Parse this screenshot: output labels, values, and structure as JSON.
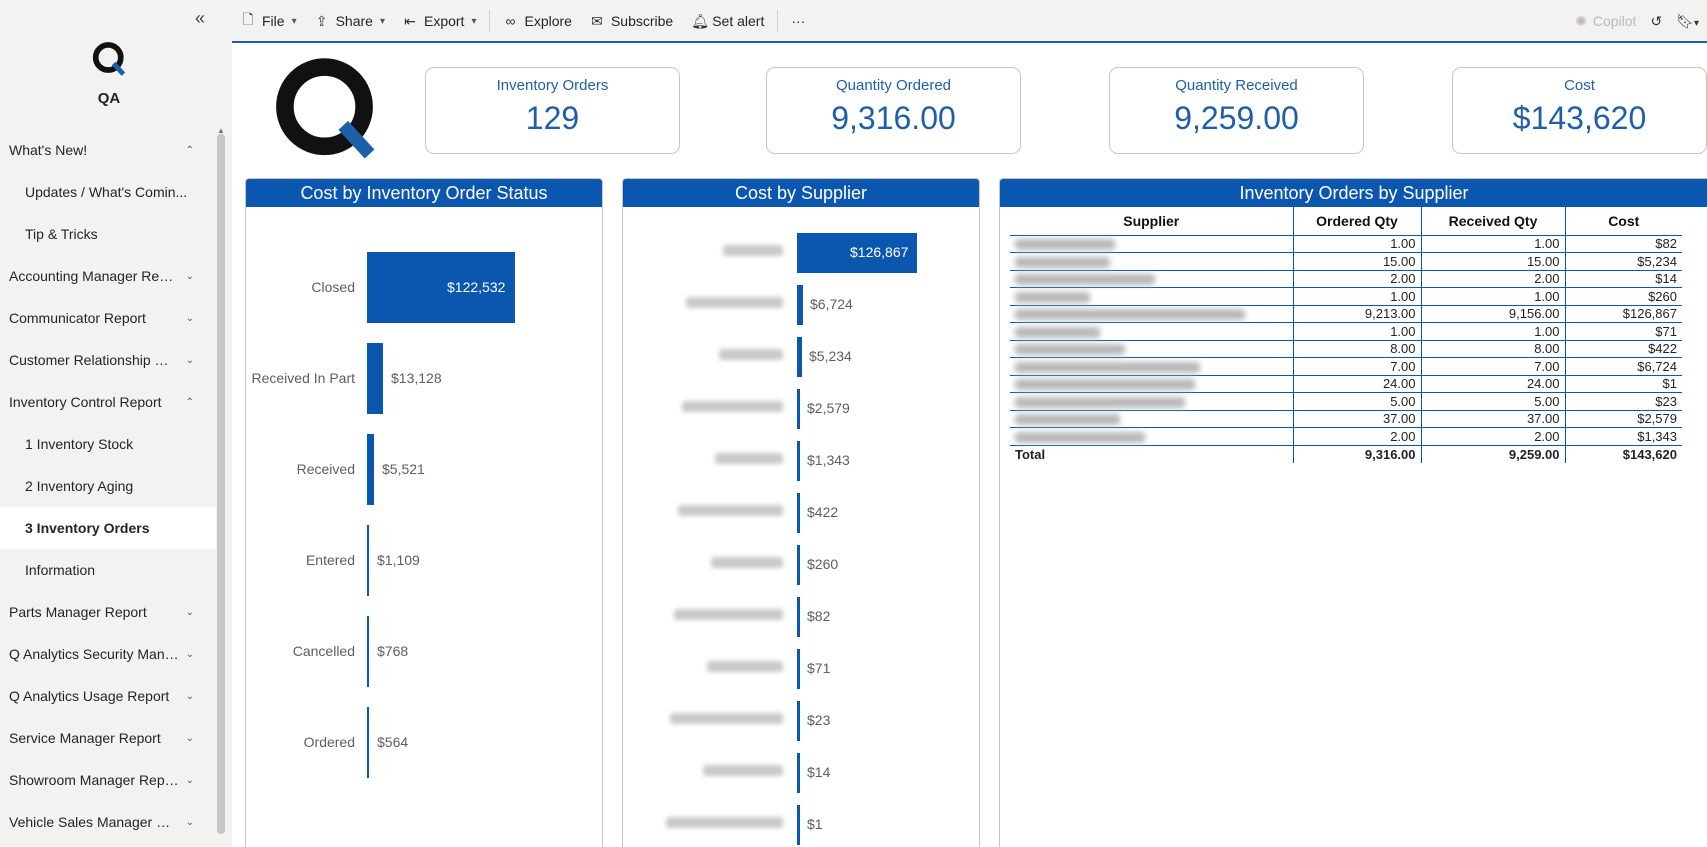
{
  "app": {
    "name": "QA"
  },
  "nav": [
    {
      "label": "What's New!",
      "type": "section",
      "chevron": "up",
      "active": false
    },
    {
      "label": "Updates / What's Comin...",
      "type": "child",
      "active": false
    },
    {
      "label": "Tip & Tricks",
      "type": "child",
      "active": false
    },
    {
      "label": "Accounting Manager Report",
      "type": "section",
      "chevron": "down",
      "active": false
    },
    {
      "label": "Communicator Report",
      "type": "section",
      "chevron": "down",
      "active": false
    },
    {
      "label": "Customer Relationship Ma...",
      "type": "section",
      "chevron": "down",
      "active": false
    },
    {
      "label": "Inventory Control Report",
      "type": "section",
      "chevron": "up",
      "active": false
    },
    {
      "label": "1 Inventory Stock",
      "type": "child",
      "active": false
    },
    {
      "label": "2 Inventory Aging",
      "type": "child",
      "active": false
    },
    {
      "label": "3 Inventory Orders",
      "type": "child",
      "active": true
    },
    {
      "label": "Information",
      "type": "child",
      "active": false
    },
    {
      "label": "Parts Manager Report",
      "type": "section",
      "chevron": "down",
      "active": false
    },
    {
      "label": "Q Analytics Security Mana...",
      "type": "section",
      "chevron": "down",
      "active": false
    },
    {
      "label": "Q Analytics Usage Report",
      "type": "section",
      "chevron": "down",
      "active": false
    },
    {
      "label": "Service Manager Report",
      "type": "section",
      "chevron": "down",
      "active": false
    },
    {
      "label": "Showroom Manager Report",
      "type": "section",
      "chevron": "down",
      "active": false
    },
    {
      "label": "Vehicle Sales Manager Rep...",
      "type": "section",
      "chevron": "down",
      "active": false
    }
  ],
  "toolbar": {
    "file": "File",
    "share": "Share",
    "export": "Export",
    "explore": "Explore",
    "subscribe": "Subscribe",
    "set_alert": "Set alert",
    "more": "···",
    "copilot": "Copilot"
  },
  "kpis": [
    {
      "title": "Inventory Orders",
      "value": "129"
    },
    {
      "title": "Quantity Ordered",
      "value": "9,316.00"
    },
    {
      "title": "Quantity Received",
      "value": "9,259.00"
    },
    {
      "title": "Cost",
      "value": "$143,620"
    }
  ],
  "status_chart": {
    "title": "Cost by Inventory Order Status",
    "chart_data": {
      "type": "bar",
      "orientation": "horizontal",
      "title": "Cost by Inventory Order Status",
      "categories": [
        "Closed",
        "Received In Part",
        "Received",
        "Entered",
        "Cancelled",
        "Ordered"
      ],
      "values": [
        122532,
        13128,
        5521,
        1109,
        768,
        564
      ],
      "labels": [
        "$122,532",
        "$13,128",
        "$5,521",
        "$1,109",
        "$768",
        "$564"
      ]
    }
  },
  "supplier_chart": {
    "title": "Cost by Supplier",
    "chart_data": {
      "type": "bar",
      "orientation": "horizontal",
      "title": "Cost by Supplier",
      "categories": [
        "",
        "",
        "",
        "",
        "",
        "",
        "",
        "",
        "",
        "",
        "",
        ""
      ],
      "values": [
        126867,
        6724,
        5234,
        2579,
        1343,
        422,
        260,
        82,
        71,
        23,
        14,
        1
      ],
      "labels": [
        "$126,867",
        "$6,724",
        "$5,234",
        "$2,579",
        "$1,343",
        "$422",
        "$260",
        "$82",
        "$71",
        "$23",
        "$14",
        "$1"
      ]
    }
  },
  "supplier_table": {
    "title": "Inventory Orders by Supplier",
    "columns": [
      "Supplier",
      "Ordered Qty",
      "Received Qty",
      "Cost"
    ],
    "rows": [
      [
        "",
        "1.00",
        "1.00",
        "$82"
      ],
      [
        "",
        "15.00",
        "15.00",
        "$5,234"
      ],
      [
        "",
        "2.00",
        "2.00",
        "$14"
      ],
      [
        "",
        "1.00",
        "1.00",
        "$260"
      ],
      [
        "",
        "9,213.00",
        "9,156.00",
        "$126,867"
      ],
      [
        "",
        "1.00",
        "1.00",
        "$71"
      ],
      [
        "",
        "8.00",
        "8.00",
        "$422"
      ],
      [
        "",
        "7.00",
        "7.00",
        "$6,724"
      ],
      [
        "",
        "24.00",
        "24.00",
        "$1"
      ],
      [
        "",
        "5.00",
        "5.00",
        "$23"
      ],
      [
        "",
        "37.00",
        "37.00",
        "$2,579"
      ],
      [
        "",
        "2.00",
        "2.00",
        "$1,343"
      ]
    ],
    "total": [
      "Total",
      "9,316.00",
      "9,259.00",
      "$143,620"
    ]
  }
}
